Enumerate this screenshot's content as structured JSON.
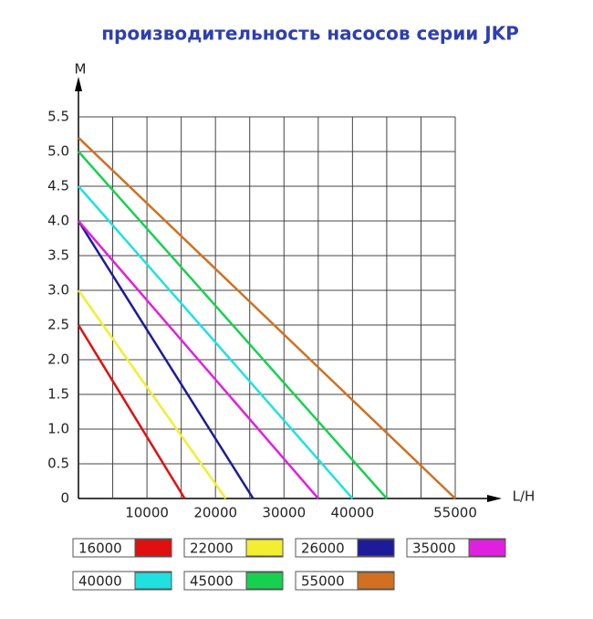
{
  "chart_data": {
    "type": "line",
    "title": "производительность насосов серии JKP",
    "y_label": "M",
    "x_label": "L/H",
    "xlim": [
      0,
      55000
    ],
    "ylim": [
      0,
      5.5
    ],
    "xticks": [
      10000,
      20000,
      30000,
      40000,
      55000
    ],
    "xgrid": [
      0,
      5000,
      10000,
      15000,
      20000,
      25000,
      30000,
      35000,
      40000,
      45000,
      50000,
      55000
    ],
    "yticks": [
      0,
      0.5,
      {
        "value": 1,
        "label": "1.0"
      },
      1.5,
      {
        "value": 2,
        "label": "2.0"
      },
      2.5,
      {
        "value": 3,
        "label": "3.0"
      },
      3.5,
      {
        "value": 4,
        "label": "4.0"
      },
      4.5,
      {
        "value": 5,
        "label": "5.0"
      },
      5.5
    ],
    "grid": true,
    "series": [
      {
        "name": "16000",
        "color": "#e01010",
        "x": [
          0,
          15500
        ],
        "values": [
          2.5,
          0
        ]
      },
      {
        "name": "22000",
        "color": "#f2ee30",
        "x": [
          0,
          21500
        ],
        "values": [
          3.0,
          0
        ]
      },
      {
        "name": "26000",
        "color": "#1c1c9a",
        "x": [
          0,
          25500
        ],
        "values": [
          4.0,
          0
        ]
      },
      {
        "name": "35000",
        "color": "#e020e0",
        "x": [
          0,
          35000
        ],
        "values": [
          4.0,
          0
        ]
      },
      {
        "name": "40000",
        "color": "#20e0e0",
        "x": [
          0,
          40000
        ],
        "values": [
          4.5,
          0
        ]
      },
      {
        "name": "45000",
        "color": "#18d050",
        "x": [
          0,
          45000
        ],
        "values": [
          5.0,
          0
        ]
      },
      {
        "name": "55000",
        "color": "#d07020",
        "x": [
          0,
          55000
        ],
        "values": [
          5.2,
          0
        ]
      }
    ]
  }
}
